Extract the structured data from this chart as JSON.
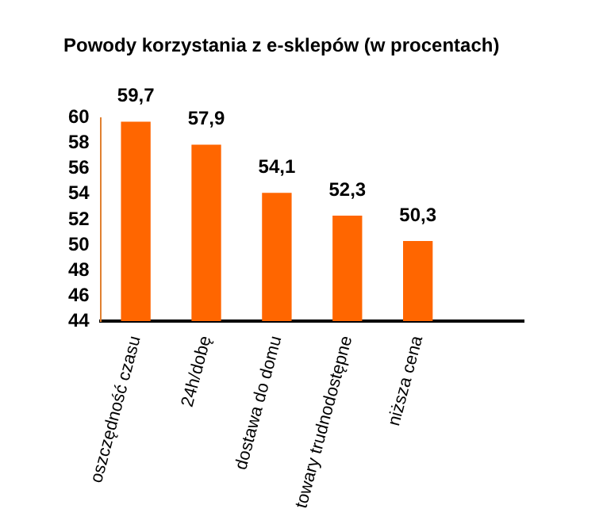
{
  "chart_data": {
    "type": "bar",
    "title": "Powody korzystania z e-sklepów (w procentach)",
    "categories": [
      "oszczędność czasu",
      "24h/dobę",
      "dostawa do domu",
      "towary trudnodostępne",
      "niższa cena",
      null
    ],
    "values": [
      59.7,
      57.9,
      54.1,
      52.3,
      50.3,
      null
    ],
    "value_labels": [
      "59,7",
      "57,9",
      "54,1",
      "52,3",
      "50,3",
      null
    ],
    "color": "#ff6600",
    "ylim": [
      44,
      60
    ],
    "yticks": [
      44,
      46,
      48,
      50,
      52,
      54,
      56,
      58,
      60
    ],
    "grid": false,
    "legend": false
  }
}
